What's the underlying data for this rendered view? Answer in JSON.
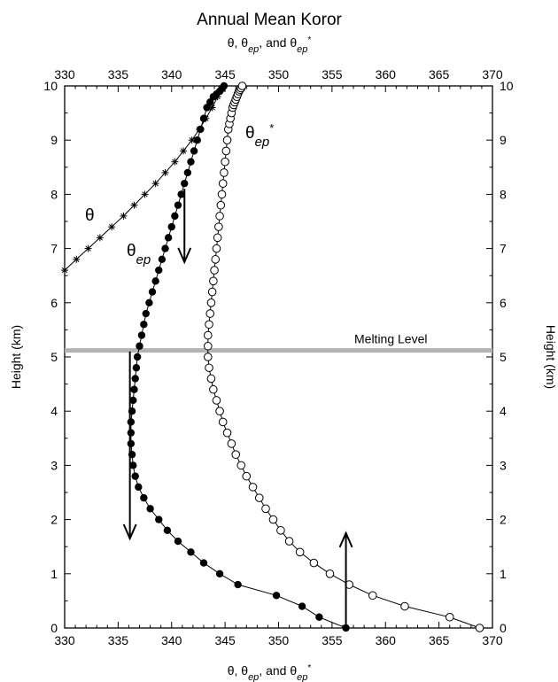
{
  "chart_data": {
    "type": "line",
    "title": "Annual Mean Koror",
    "xlabel": {
      "main": "θ, θ",
      "sub": "ep",
      "mid": ", and θ",
      "sub2": "ep",
      "sup": "*"
    },
    "ylabel": "Height (km)",
    "xlim": [
      330,
      370
    ],
    "ylim": [
      0,
      10
    ],
    "xticks": [
      "330",
      "335",
      "340",
      "345",
      "350",
      "355",
      "360",
      "365",
      "370"
    ],
    "yticks": [
      "0",
      "1",
      "2",
      "3",
      "4",
      "5",
      "6",
      "7",
      "8",
      "9",
      "10"
    ],
    "melting_level": {
      "label": "Melting Level",
      "height": 5.12,
      "color": "#b3b3b3"
    },
    "series": [
      {
        "key": "theta",
        "label_main": "θ",
        "label_sub": "",
        "label_sup": "",
        "marker": "asterisk",
        "x": [
          330.0,
          331.1,
          332.2,
          333.3,
          334.4,
          335.5,
          336.5,
          337.5,
          338.5,
          339.4,
          340.3,
          341.1,
          341.9,
          342.6,
          343.2,
          343.8,
          344.3
        ],
        "y": [
          6.6,
          6.8,
          7.0,
          7.2,
          7.4,
          7.6,
          7.8,
          8.0,
          8.2,
          8.4,
          8.6,
          8.8,
          9.0,
          9.2,
          9.4,
          9.6,
          9.8
        ]
      },
      {
        "key": "theta_ep",
        "label_main": "θ",
        "label_sub": "ep",
        "label_sup": "",
        "marker": "filled-circle",
        "x": [
          356.3,
          353.8,
          352.2,
          349.8,
          346.2,
          344.5,
          343.0,
          341.8,
          340.6,
          339.6,
          338.8,
          338.0,
          337.4,
          336.9,
          336.6,
          336.4,
          336.3,
          336.2,
          336.2,
          336.2,
          336.3,
          336.4,
          336.5,
          336.6,
          336.7,
          336.8,
          337.0,
          337.2,
          337.4,
          337.6,
          337.9,
          338.2,
          338.5,
          338.8,
          339.1,
          339.4,
          339.7,
          340.0,
          340.3,
          340.6,
          340.9,
          341.2,
          341.5,
          341.8,
          342.1,
          342.4,
          342.7,
          343.0,
          343.3,
          343.6,
          343.9,
          344.2,
          344.5,
          344.7,
          344.9
        ],
        "y": [
          0.0,
          0.2,
          0.4,
          0.6,
          0.8,
          1.0,
          1.2,
          1.4,
          1.6,
          1.8,
          2.0,
          2.2,
          2.4,
          2.6,
          2.8,
          3.0,
          3.2,
          3.4,
          3.6,
          3.8,
          4.0,
          4.2,
          4.4,
          4.6,
          4.8,
          5.0,
          5.2,
          5.4,
          5.6,
          5.8,
          6.0,
          6.2,
          6.4,
          6.6,
          6.8,
          7.0,
          7.2,
          7.4,
          7.6,
          7.8,
          8.0,
          8.2,
          8.4,
          8.6,
          8.8,
          9.0,
          9.2,
          9.4,
          9.6,
          9.7,
          9.8,
          9.85,
          9.9,
          9.95,
          10.0
        ]
      },
      {
        "key": "theta_ep_star",
        "label_main": "θ",
        "label_sub": "ep",
        "label_sup": "*",
        "marker": "open-circle",
        "x": [
          368.8,
          366.0,
          361.8,
          358.8,
          356.6,
          354.8,
          353.3,
          352.0,
          351.0,
          350.2,
          349.5,
          348.8,
          348.2,
          347.6,
          347.0,
          346.5,
          346.0,
          345.6,
          345.2,
          344.8,
          344.5,
          344.2,
          343.9,
          343.7,
          343.5,
          343.4,
          343.4,
          343.4,
          343.5,
          343.6,
          343.7,
          343.8,
          343.9,
          344.0,
          344.1,
          344.2,
          344.3,
          344.4,
          344.5,
          344.6,
          344.7,
          344.8,
          344.9,
          345.0,
          345.1,
          345.2,
          345.3,
          345.4,
          345.5,
          345.6,
          345.7,
          345.8,
          345.9,
          346.0,
          346.1,
          346.2,
          346.3,
          346.4,
          346.5,
          346.6
        ],
        "y": [
          0.0,
          0.2,
          0.4,
          0.6,
          0.8,
          1.0,
          1.2,
          1.4,
          1.6,
          1.8,
          2.0,
          2.2,
          2.4,
          2.6,
          2.8,
          3.0,
          3.2,
          3.4,
          3.6,
          3.8,
          4.0,
          4.2,
          4.4,
          4.6,
          4.8,
          5.0,
          5.2,
          5.4,
          5.6,
          5.8,
          6.0,
          6.2,
          6.4,
          6.6,
          6.8,
          7.0,
          7.2,
          7.4,
          7.6,
          7.8,
          8.0,
          8.2,
          8.4,
          8.6,
          8.8,
          9.0,
          9.2,
          9.3,
          9.4,
          9.5,
          9.6,
          9.65,
          9.7,
          9.75,
          9.8,
          9.85,
          9.9,
          9.93,
          9.96,
          10.0
        ]
      }
    ],
    "arrows": [
      {
        "x": 341.2,
        "y_from": 8.1,
        "y_to": 6.75,
        "direction": "down"
      },
      {
        "x": 336.1,
        "y_from": 5.1,
        "y_to": 1.65,
        "direction": "down"
      },
      {
        "x": 356.3,
        "y_from": 0.0,
        "y_to": 1.75,
        "direction": "up"
      }
    ]
  }
}
